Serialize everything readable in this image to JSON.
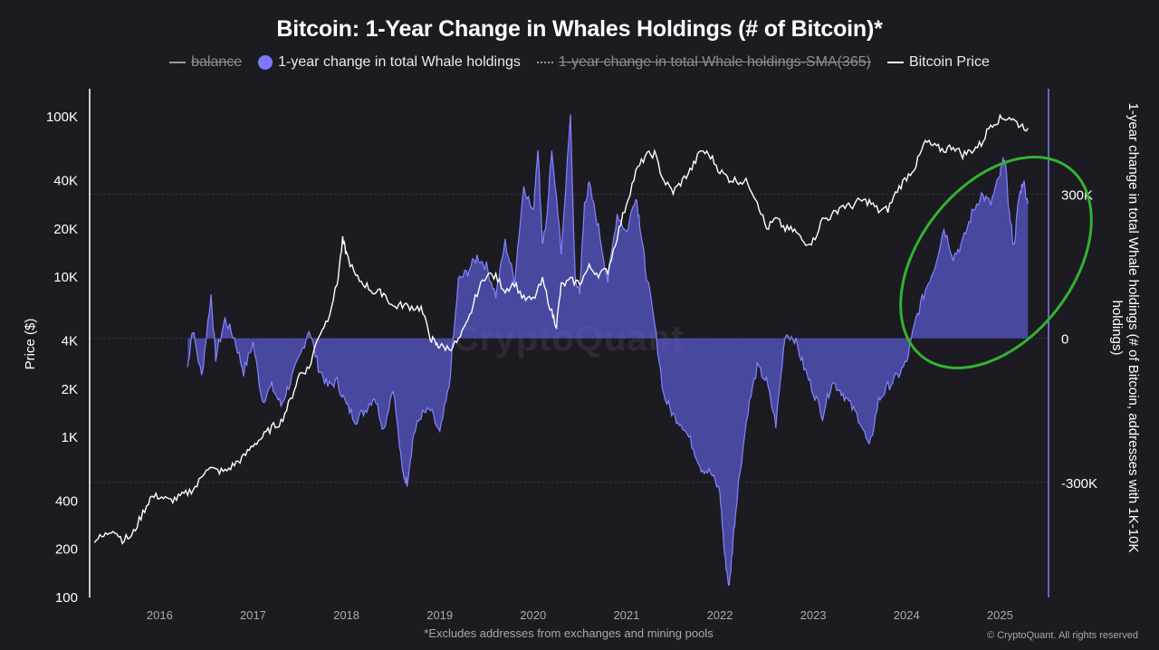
{
  "colors": {
    "background": "#1b1b21",
    "area_fill": "#5b5ad0",
    "area_fill_opacity": 0.72,
    "area_line": "#8582ff",
    "price_line": "#ffffff",
    "axis_line": "#ffffff",
    "right_axis_line": "#8580f0",
    "grid": "#3a3a44",
    "highlight_ellipse": "#33b233"
  },
  "chart_data": {
    "type": "area",
    "title": "Bitcoin: 1-Year Change in Whales Holdings (# of Bitcoin)*",
    "legend": {
      "placement": "top-center",
      "items": [
        {
          "label": "balance",
          "style": "line",
          "hidden": true
        },
        {
          "label": "1-year change in total Whale holdings",
          "style": "dot",
          "color": "#7b79ff",
          "hidden": false
        },
        {
          "label": "1-year change in total Whale holdings-SMA(365)",
          "style": "dotted",
          "hidden": true
        },
        {
          "label": "Bitcoin Price",
          "style": "line",
          "color": "#ffffff",
          "hidden": false
        }
      ]
    },
    "x_axis": {
      "range": [
        2015.25,
        2025.52
      ],
      "ticks": [
        "2016",
        "2017",
        "2018",
        "2019",
        "2020",
        "2021",
        "2022",
        "2023",
        "2024",
        "2025"
      ]
    },
    "left_axis": {
      "label": "Price ($)",
      "scale": "log",
      "range": [
        100,
        150000
      ],
      "ticks": [
        "100",
        "200",
        "400",
        "1K",
        "2K",
        "4K",
        "10K",
        "20K",
        "40K",
        "100K"
      ],
      "tick_values": [
        100,
        200,
        400,
        1000,
        2000,
        4000,
        10000,
        20000,
        40000,
        100000
      ]
    },
    "right_axis": {
      "label": "1-year change in total Whale holdings (# of Bitcoin, addresses with 1K-10K holdings)",
      "range": [
        -540000,
        520000
      ],
      "ticks": [
        "300K",
        "0",
        "-300K"
      ],
      "tick_values": [
        300000,
        0,
        -300000
      ]
    },
    "grid": {
      "horizontal": true,
      "at_right_ticks": true
    },
    "series": [
      {
        "name": "1-year change in total Whale holdings",
        "axis": "right",
        "x": [
          2016.3,
          2016.35,
          2016.45,
          2016.55,
          2016.6,
          2016.7,
          2016.8,
          2016.9,
          2017.0,
          2017.1,
          2017.2,
          2017.3,
          2017.4,
          2017.5,
          2017.6,
          2017.7,
          2017.8,
          2017.9,
          2018.0,
          2018.1,
          2018.2,
          2018.3,
          2018.4,
          2018.5,
          2018.6,
          2018.65,
          2018.72,
          2018.8,
          2018.9,
          2019.0,
          2019.1,
          2019.2,
          2019.3,
          2019.4,
          2019.5,
          2019.6,
          2019.7,
          2019.8,
          2019.9,
          2020.0,
          2020.05,
          2020.1,
          2020.15,
          2020.2,
          2020.3,
          2020.4,
          2020.45,
          2020.5,
          2020.55,
          2020.6,
          2020.7,
          2020.8,
          2020.9,
          2021.0,
          2021.1,
          2021.15,
          2021.2,
          2021.3,
          2021.4,
          2021.5,
          2021.6,
          2021.7,
          2021.8,
          2021.9,
          2022.0,
          2022.05,
          2022.1,
          2022.15,
          2022.2,
          2022.3,
          2022.4,
          2022.5,
          2022.6,
          2022.7,
          2022.8,
          2022.9,
          2023.0,
          2023.1,
          2023.2,
          2023.3,
          2023.4,
          2023.5,
          2023.6,
          2023.7,
          2023.8,
          2023.9,
          2024.0,
          2024.1,
          2024.2,
          2024.3,
          2024.4,
          2024.5,
          2024.6,
          2024.7,
          2024.8,
          2024.9,
          2025.0,
          2025.05,
          2025.1,
          2025.15,
          2025.2,
          2025.25,
          2025.3
        ],
        "values": [
          -60000,
          20000,
          -80000,
          90000,
          -40000,
          40000,
          0,
          -70000,
          -10000,
          -130000,
          -100000,
          -140000,
          -90000,
          -40000,
          20000,
          -60000,
          -100000,
          -90000,
          -140000,
          -170000,
          -150000,
          -120000,
          -190000,
          -100000,
          -280000,
          -300000,
          -200000,
          -160000,
          -150000,
          -200000,
          -100000,
          120000,
          140000,
          170000,
          150000,
          90000,
          200000,
          120000,
          320000,
          260000,
          400000,
          200000,
          250000,
          400000,
          180000,
          460000,
          120000,
          100000,
          280000,
          320000,
          230000,
          120000,
          260000,
          220000,
          300000,
          230000,
          150000,
          30000,
          -120000,
          -160000,
          -180000,
          -220000,
          -270000,
          -280000,
          -320000,
          -450000,
          -520000,
          -400000,
          -300000,
          -150000,
          -60000,
          -90000,
          -180000,
          10000,
          0,
          -60000,
          -110000,
          -160000,
          -90000,
          -110000,
          -140000,
          -170000,
          -230000,
          -130000,
          -100000,
          -80000,
          -50000,
          40000,
          100000,
          150000,
          230000,
          170000,
          200000,
          260000,
          300000,
          280000,
          340000,
          380000,
          260000,
          190000,
          290000,
          330000,
          280000
        ]
      },
      {
        "name": "Bitcoin Price",
        "axis": "left",
        "x": [
          2015.3,
          2015.4,
          2015.5,
          2015.6,
          2015.7,
          2015.8,
          2015.9,
          2016.0,
          2016.1,
          2016.2,
          2016.3,
          2016.4,
          2016.5,
          2016.6,
          2016.7,
          2016.8,
          2016.9,
          2017.0,
          2017.1,
          2017.2,
          2017.3,
          2017.4,
          2017.5,
          2017.6,
          2017.7,
          2017.8,
          2017.9,
          2017.96,
          2018.0,
          2018.1,
          2018.2,
          2018.3,
          2018.4,
          2018.5,
          2018.6,
          2018.7,
          2018.8,
          2018.9,
          2018.96,
          2019.0,
          2019.1,
          2019.2,
          2019.3,
          2019.4,
          2019.5,
          2019.6,
          2019.7,
          2019.8,
          2019.9,
          2020.0,
          2020.1,
          2020.2,
          2020.25,
          2020.3,
          2020.4,
          2020.5,
          2020.6,
          2020.7,
          2020.8,
          2020.9,
          2021.0,
          2021.1,
          2021.2,
          2021.3,
          2021.4,
          2021.5,
          2021.6,
          2021.7,
          2021.8,
          2021.9,
          2022.0,
          2022.1,
          2022.2,
          2022.3,
          2022.4,
          2022.5,
          2022.6,
          2022.7,
          2022.8,
          2022.9,
          2023.0,
          2023.1,
          2023.2,
          2023.3,
          2023.4,
          2023.5,
          2023.6,
          2023.7,
          2023.8,
          2023.9,
          2024.0,
          2024.1,
          2024.2,
          2024.3,
          2024.4,
          2024.5,
          2024.6,
          2024.7,
          2024.8,
          2024.9,
          2025.0,
          2025.1,
          2025.2,
          2025.3
        ],
        "values": [
          230,
          240,
          270,
          230,
          240,
          320,
          420,
          430,
          400,
          420,
          450,
          500,
          650,
          620,
          610,
          680,
          750,
          900,
          1000,
          1150,
          1250,
          1700,
          2500,
          2700,
          4300,
          5500,
          9000,
          17000,
          14000,
          10000,
          9000,
          8000,
          8000,
          6500,
          6700,
          6500,
          6400,
          4200,
          3800,
          3700,
          3600,
          4000,
          5200,
          8000,
          10500,
          10000,
          8300,
          9200,
          7300,
          7200,
          9500,
          6000,
          5000,
          8800,
          9500,
          9200,
          11500,
          10500,
          11000,
          18000,
          29000,
          45000,
          57000,
          59000,
          40000,
          34000,
          40000,
          48000,
          62000,
          57000,
          46000,
          41000,
          40000,
          39000,
          30000,
          20000,
          23000,
          20000,
          19500,
          16500,
          16800,
          23000,
          24000,
          28000,
          27500,
          30000,
          29500,
          26000,
          26500,
          35000,
          42000,
          50000,
          70000,
          65000,
          62000,
          66000,
          58000,
          62000,
          68000,
          90000,
          97000,
          100000,
          90000,
          85000
        ]
      }
    ],
    "annotations": [
      "green hand-drawn ellipse highlighting 2024–2025 rise"
    ]
  },
  "footnote": "*Excludes addresses from exchanges and mining pools",
  "copyright": "© CryptoQuant. All rights reserved",
  "watermark": "CryptoQuant"
}
